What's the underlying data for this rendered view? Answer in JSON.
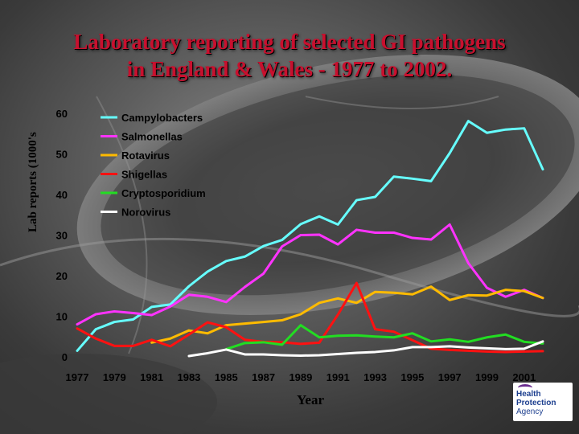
{
  "title_line1": "Laboratory reporting of selected GI pathogens",
  "title_line2": "in England & Wales - 1977 to 2002.",
  "logo": {
    "line1": "Health",
    "line2": "Protection",
    "line3": "Agency"
  },
  "colors": {
    "title": "#c8102e",
    "campylobacters": "#66ffff",
    "salmonellas": "#ff33ff",
    "rotavirus": "#ffbb00",
    "shigellas": "#ff1111",
    "cryptosporidium": "#22dd22",
    "norovirus": "#ffffff"
  },
  "chart_data": {
    "type": "line",
    "title": "Laboratory reporting of selected GI pathogens in England & Wales - 1977 to 2002.",
    "xlabel": "Year",
    "ylabel": "Lab reports (1000's",
    "xlim": [
      1977,
      2002
    ],
    "ylim": [
      0,
      60
    ],
    "x_ticks": [
      1977,
      1979,
      1981,
      1983,
      1985,
      1987,
      1989,
      1991,
      1993,
      1995,
      1997,
      1999,
      2001
    ],
    "y_ticks": [
      0,
      10,
      20,
      30,
      40,
      50,
      60
    ],
    "grid": false,
    "legend_position": "top-center",
    "x": [
      1977,
      1978,
      1979,
      1980,
      1981,
      1982,
      1983,
      1984,
      1985,
      1986,
      1987,
      1988,
      1989,
      1990,
      1991,
      1992,
      1993,
      1994,
      1995,
      1996,
      1997,
      1998,
      1999,
      2000,
      2001,
      2002
    ],
    "series": [
      {
        "name": "Campylobacters",
        "color": "#66ffff",
        "values": [
          1.5,
          6.8,
          8.6,
          9.2,
          12.3,
          12.9,
          17.4,
          21.0,
          23.6,
          24.7,
          27.3,
          28.8,
          32.7,
          34.6,
          32.6,
          38.6,
          39.4,
          44.4,
          43.9,
          43.3,
          50.2,
          58.1,
          55.2,
          56.0,
          56.3,
          46.2
        ]
      },
      {
        "name": "Salmonellas",
        "color": "#ff33ff",
        "values": [
          8.0,
          10.5,
          11.2,
          10.8,
          10.3,
          12.4,
          15.3,
          14.8,
          13.5,
          17.2,
          20.5,
          27.2,
          30.0,
          30.1,
          27.7,
          31.3,
          30.6,
          30.6,
          29.3,
          28.9,
          32.6,
          23.1,
          17.0,
          14.8,
          16.5,
          14.5
        ]
      },
      {
        "name": "Rotavirus",
        "color": "#ffbb00",
        "values": [
          null,
          null,
          null,
          null,
          3.5,
          4.5,
          6.5,
          5.8,
          7.8,
          8.2,
          8.6,
          9.0,
          10.5,
          13.3,
          14.4,
          13.3,
          16.0,
          15.8,
          15.4,
          17.3,
          14.0,
          15.2,
          15.1,
          16.5,
          16.2,
          14.5
        ]
      },
      {
        "name": "Shigellas",
        "color": "#ff1111",
        "values": [
          7.0,
          4.5,
          2.7,
          2.7,
          4.2,
          2.6,
          5.5,
          8.5,
          7.3,
          4.2,
          3.7,
          3.6,
          3.2,
          3.5,
          10.4,
          18.2,
          6.8,
          6.2,
          4.1,
          2.0,
          1.7,
          1.5,
          1.3,
          1.2,
          1.3,
          1.4
        ]
      },
      {
        "name": "Cryptosporidium",
        "color": "#22dd22",
        "values": [
          null,
          null,
          null,
          null,
          null,
          null,
          null,
          null,
          1.9,
          3.4,
          3.6,
          3.0,
          7.8,
          4.8,
          5.2,
          5.3,
          5.0,
          4.8,
          5.8,
          3.8,
          4.3,
          3.7,
          4.8,
          5.5,
          3.7,
          3.3
        ]
      },
      {
        "name": "Norovirus",
        "color": "#ffffff",
        "values": [
          null,
          null,
          null,
          null,
          null,
          null,
          0.2,
          0.9,
          1.8,
          0.6,
          0.6,
          0.4,
          0.3,
          0.4,
          0.7,
          1.0,
          1.2,
          1.6,
          2.4,
          2.4,
          2.6,
          2.3,
          2.1,
          1.9,
          2.0,
          3.8
        ]
      }
    ]
  }
}
